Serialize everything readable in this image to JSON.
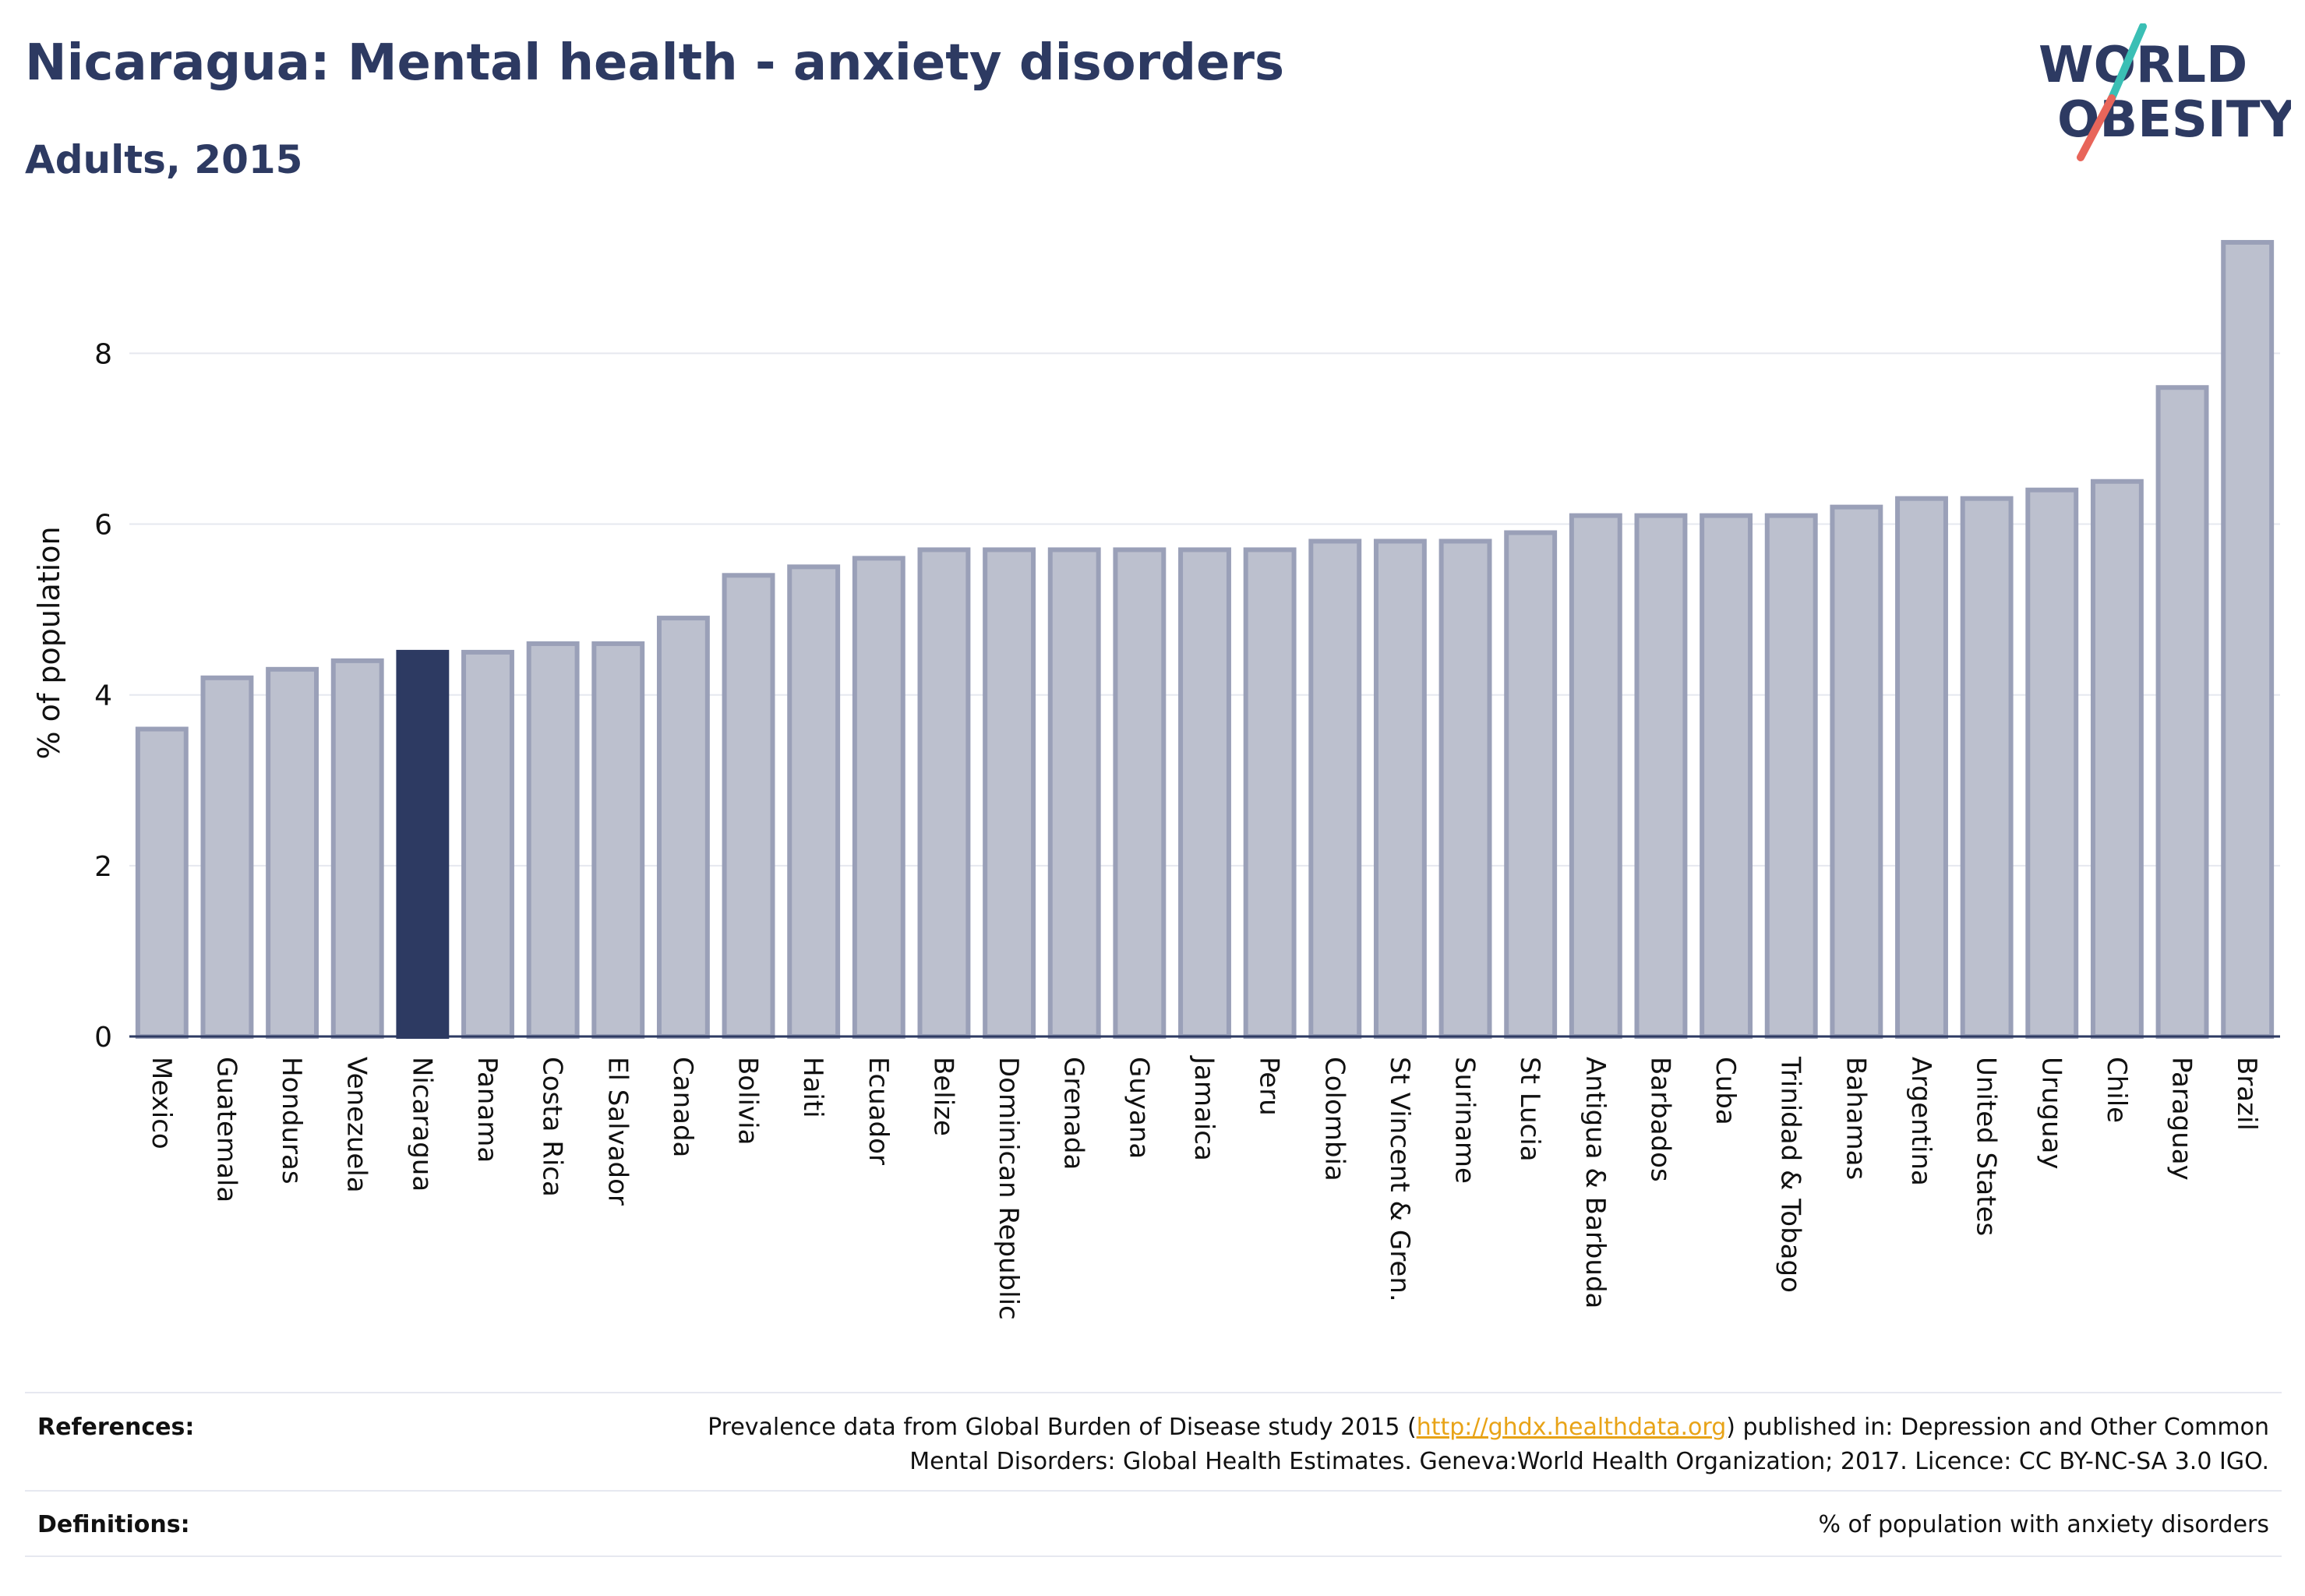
{
  "header": {
    "title": "Nicaragua: Mental health - anxiety disorders",
    "subtitle": "Adults, 2015"
  },
  "logo": {
    "line1": "WORLD",
    "line2": "OBESITY",
    "colors": {
      "text": "#2d3a62",
      "slash_teal": "#3bbfb5",
      "slash_coral": "#e8655a"
    }
  },
  "chart_data": {
    "type": "bar",
    "ylabel": "% of population",
    "xlabel": "",
    "ylim": [
      0,
      9.4
    ],
    "yticks": [
      0,
      2,
      4,
      6,
      8
    ],
    "grid": true,
    "highlight": "Nicaragua",
    "colors": {
      "bar": "#bcc0ce",
      "bar_edge": "#9aa0b8",
      "highlight": "#2d3a62",
      "axis": "#2d3a62",
      "grid": "#e6e8ef"
    },
    "categories": [
      "Mexico",
      "Guatemala",
      "Honduras",
      "Venezuela",
      "Nicaragua",
      "Panama",
      "Costa Rica",
      "El Salvador",
      "Canada",
      "Bolivia",
      "Haiti",
      "Ecuador",
      "Belize",
      "Dominican Republic",
      "Grenada",
      "Guyana",
      "Jamaica",
      "Peru",
      "Colombia",
      "St Vincent & Gren.",
      "Suriname",
      "St Lucia",
      "Antigua & Barbuda",
      "Barbados",
      "Cuba",
      "Trinidad & Tobago",
      "Bahamas",
      "Argentina",
      "United States",
      "Uruguay",
      "Chile",
      "Paraguay",
      "Brazil"
    ],
    "values": [
      3.6,
      4.2,
      4.3,
      4.4,
      4.5,
      4.5,
      4.6,
      4.6,
      4.9,
      5.4,
      5.5,
      5.6,
      5.7,
      5.7,
      5.7,
      5.7,
      5.7,
      5.7,
      5.8,
      5.8,
      5.8,
      5.9,
      6.1,
      6.1,
      6.1,
      6.1,
      6.2,
      6.3,
      6.3,
      6.4,
      6.5,
      7.6,
      9.3
    ]
  },
  "footer": {
    "references_label": "References:",
    "references_pre": "Prevalence data from Global Burden of Disease study 2015 (",
    "references_link": "http://ghdx.healthdata.org",
    "references_post": ") published in: Depression and Other Common",
    "references_line2": "Mental Disorders: Global Health Estimates. Geneva:World Health Organization; 2017. Licence: CC BY-NC-SA 3.0 IGO.",
    "definitions_label": "Definitions:",
    "definitions_text": "% of population with anxiety disorders"
  }
}
